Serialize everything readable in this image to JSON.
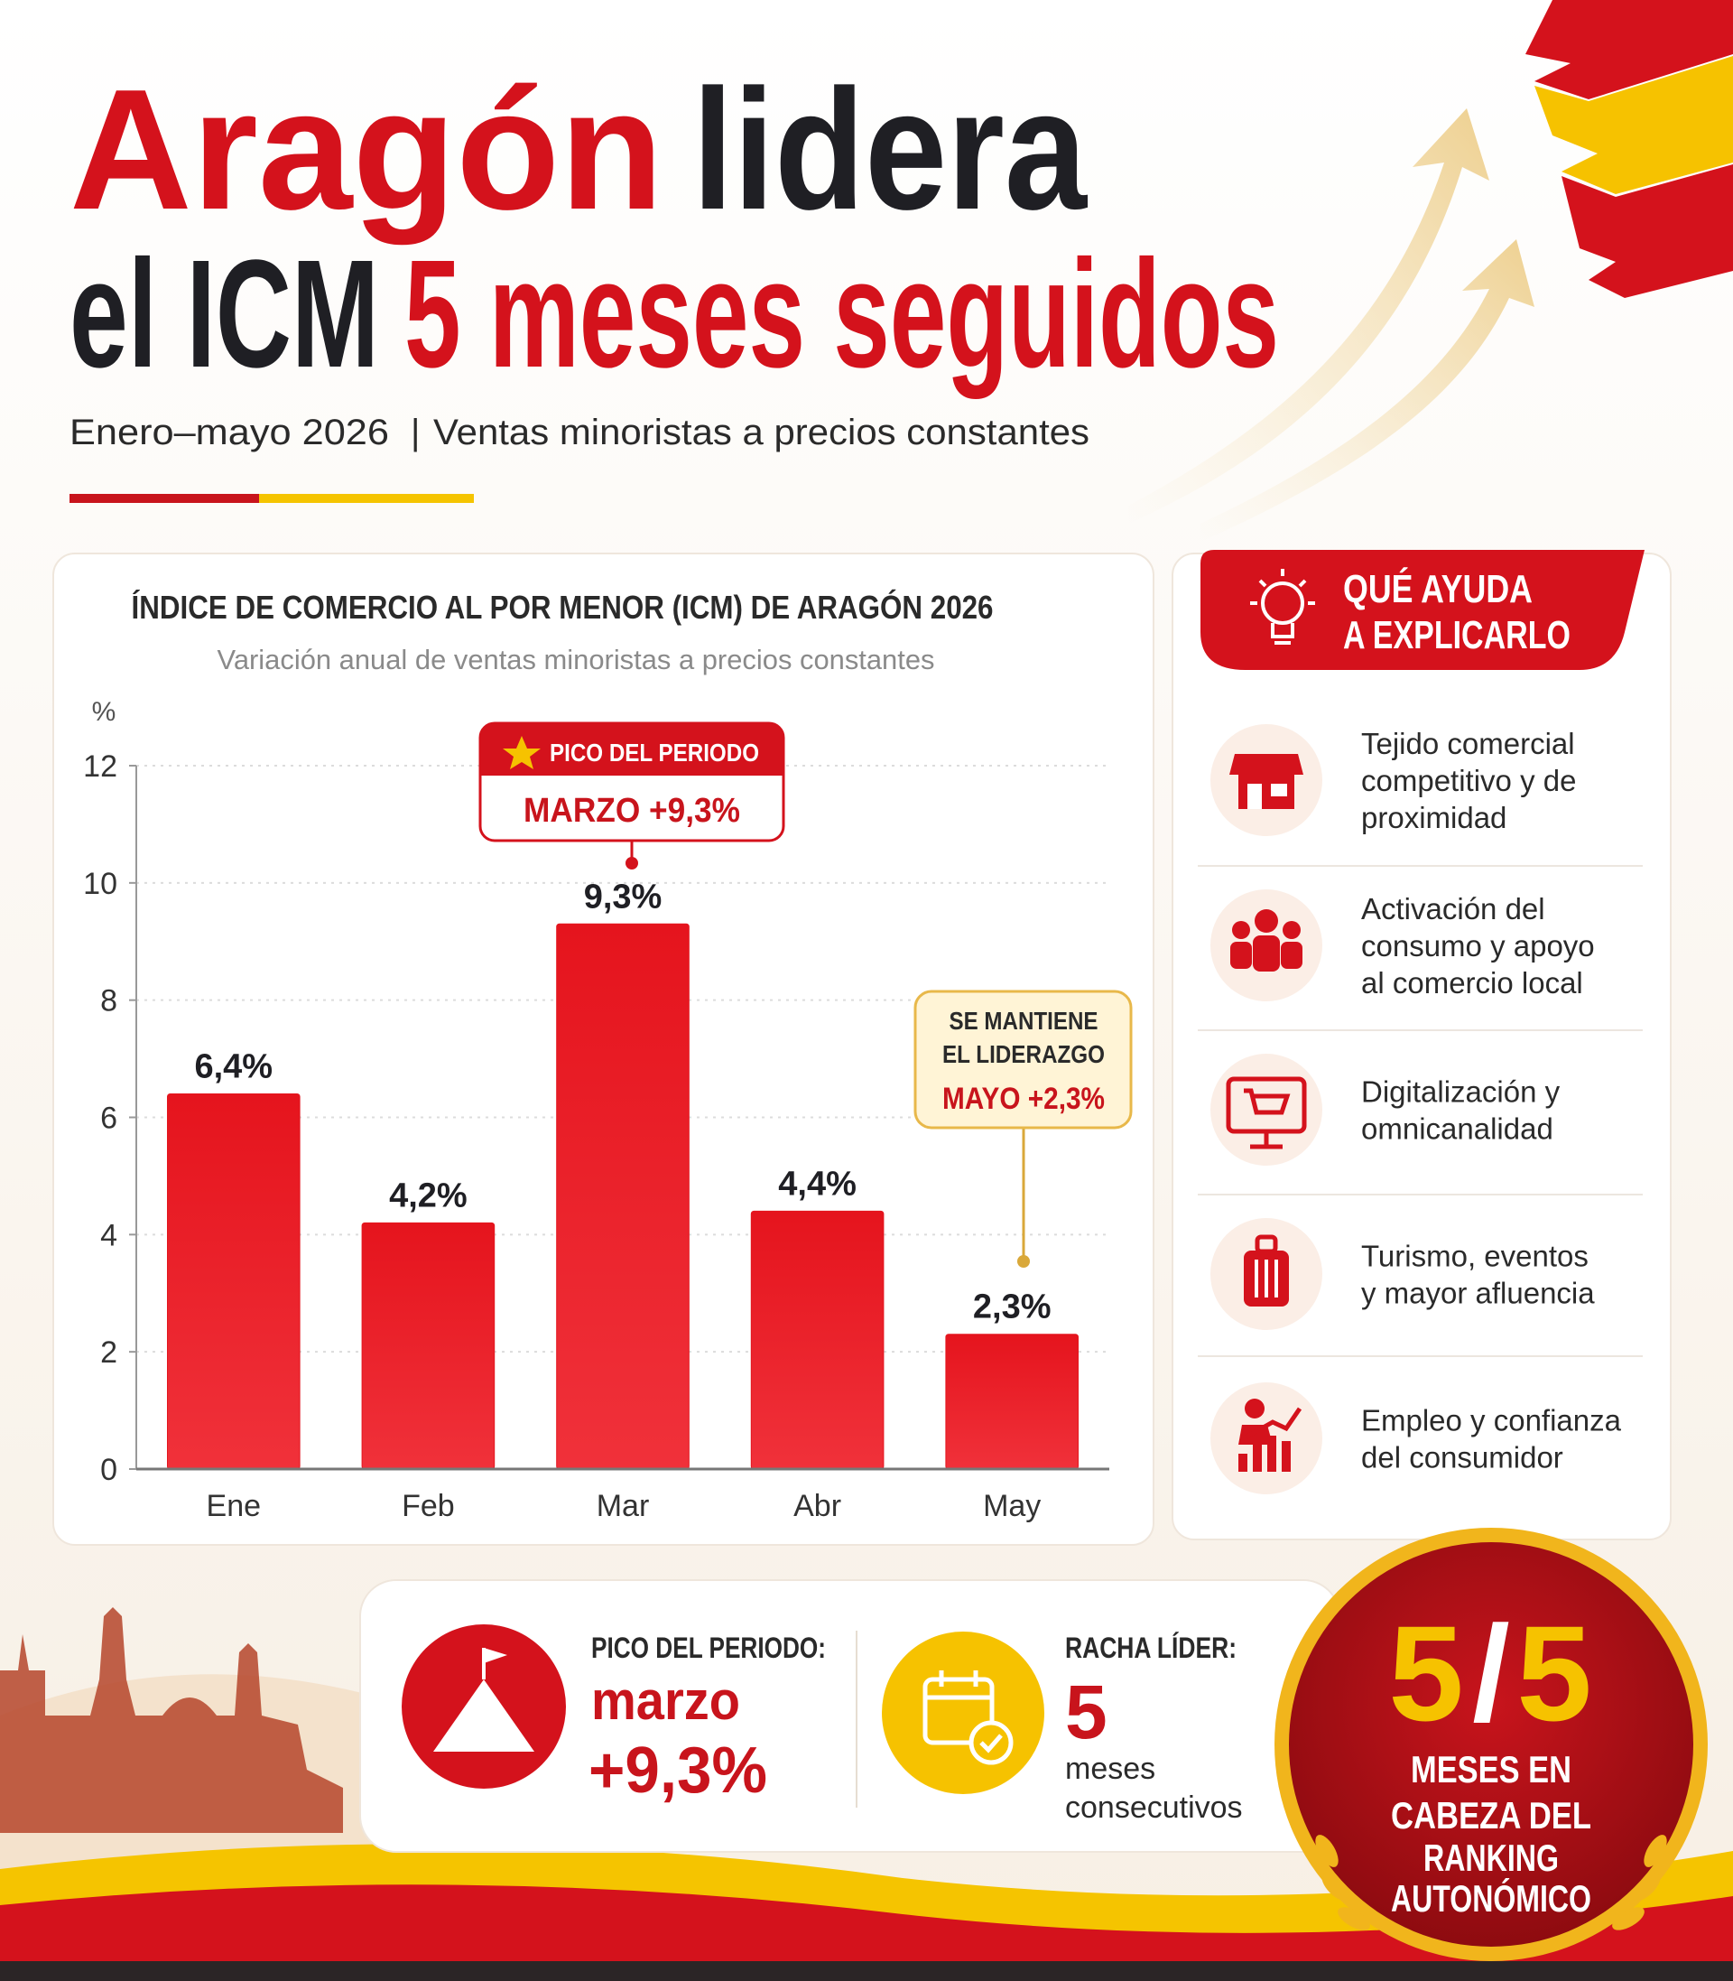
{
  "header": {
    "title_red": "Aragón",
    "title_dark": "lidera",
    "title2_dark": "el ICM",
    "title2_red": "5 meses seguidos",
    "period": "Enero–mayo 2026",
    "separator": "|",
    "description": "Ventas minoristas a precios constantes"
  },
  "chart_data": {
    "type": "bar",
    "title": "ÍNDICE DE COMERCIO AL POR MENOR (ICM) DE ARAGÓN 2026",
    "subtitle": "Variación anual de ventas minoristas a precios constantes",
    "y_unit": "%",
    "categories": [
      "Ene",
      "Feb",
      "Mar",
      "Abr",
      "May"
    ],
    "values": [
      6.4,
      4.2,
      9.3,
      4.4,
      2.3
    ],
    "value_labels": [
      "6,4%",
      "4,2%",
      "9,3%",
      "4,4%",
      "2,3%"
    ],
    "color": "#e3161f",
    "ylim": [
      0,
      12
    ],
    "yticks": [
      0,
      2,
      4,
      6,
      8,
      10,
      12
    ],
    "grid": true,
    "annotations": [
      {
        "title": "PICO DEL PERIODO",
        "text": "MARZO +9,3%"
      },
      {
        "title_lines": [
          "SE MANTIENE",
          "EL LIDERAZGO"
        ],
        "text": "MAYO +2,3%"
      }
    ]
  },
  "factors": {
    "title_lines": [
      "QUÉ AYUDA",
      "A EXPLICARLO"
    ],
    "items": [
      {
        "lines": [
          "Tejido comercial",
          "competitivo y de",
          "proximidad"
        ]
      },
      {
        "lines": [
          "Activación del",
          "consumo y apoyo",
          "al comercio local"
        ]
      },
      {
        "lines": [
          "Digitalización y",
          "omnicanalidad"
        ]
      },
      {
        "lines": [
          "Turismo, eventos",
          "y mayor afluencia"
        ]
      },
      {
        "lines": [
          "Empleo y confianza",
          "del consumidor"
        ]
      }
    ]
  },
  "stats": {
    "peak_label": "PICO DEL PERIODO:",
    "peak_month": "marzo",
    "peak_value": "+9,3%",
    "streak_label": "RACHA LÍDER:",
    "streak_number": "5",
    "streak_text_lines": [
      "meses",
      "consecutivos"
    ]
  },
  "badge": {
    "numerator": "5",
    "slash": "/",
    "denominator": "5",
    "text_lines": [
      "MESES EN",
      "CABEZA DEL",
      "RANKING",
      "AUTONÓMICO"
    ]
  }
}
